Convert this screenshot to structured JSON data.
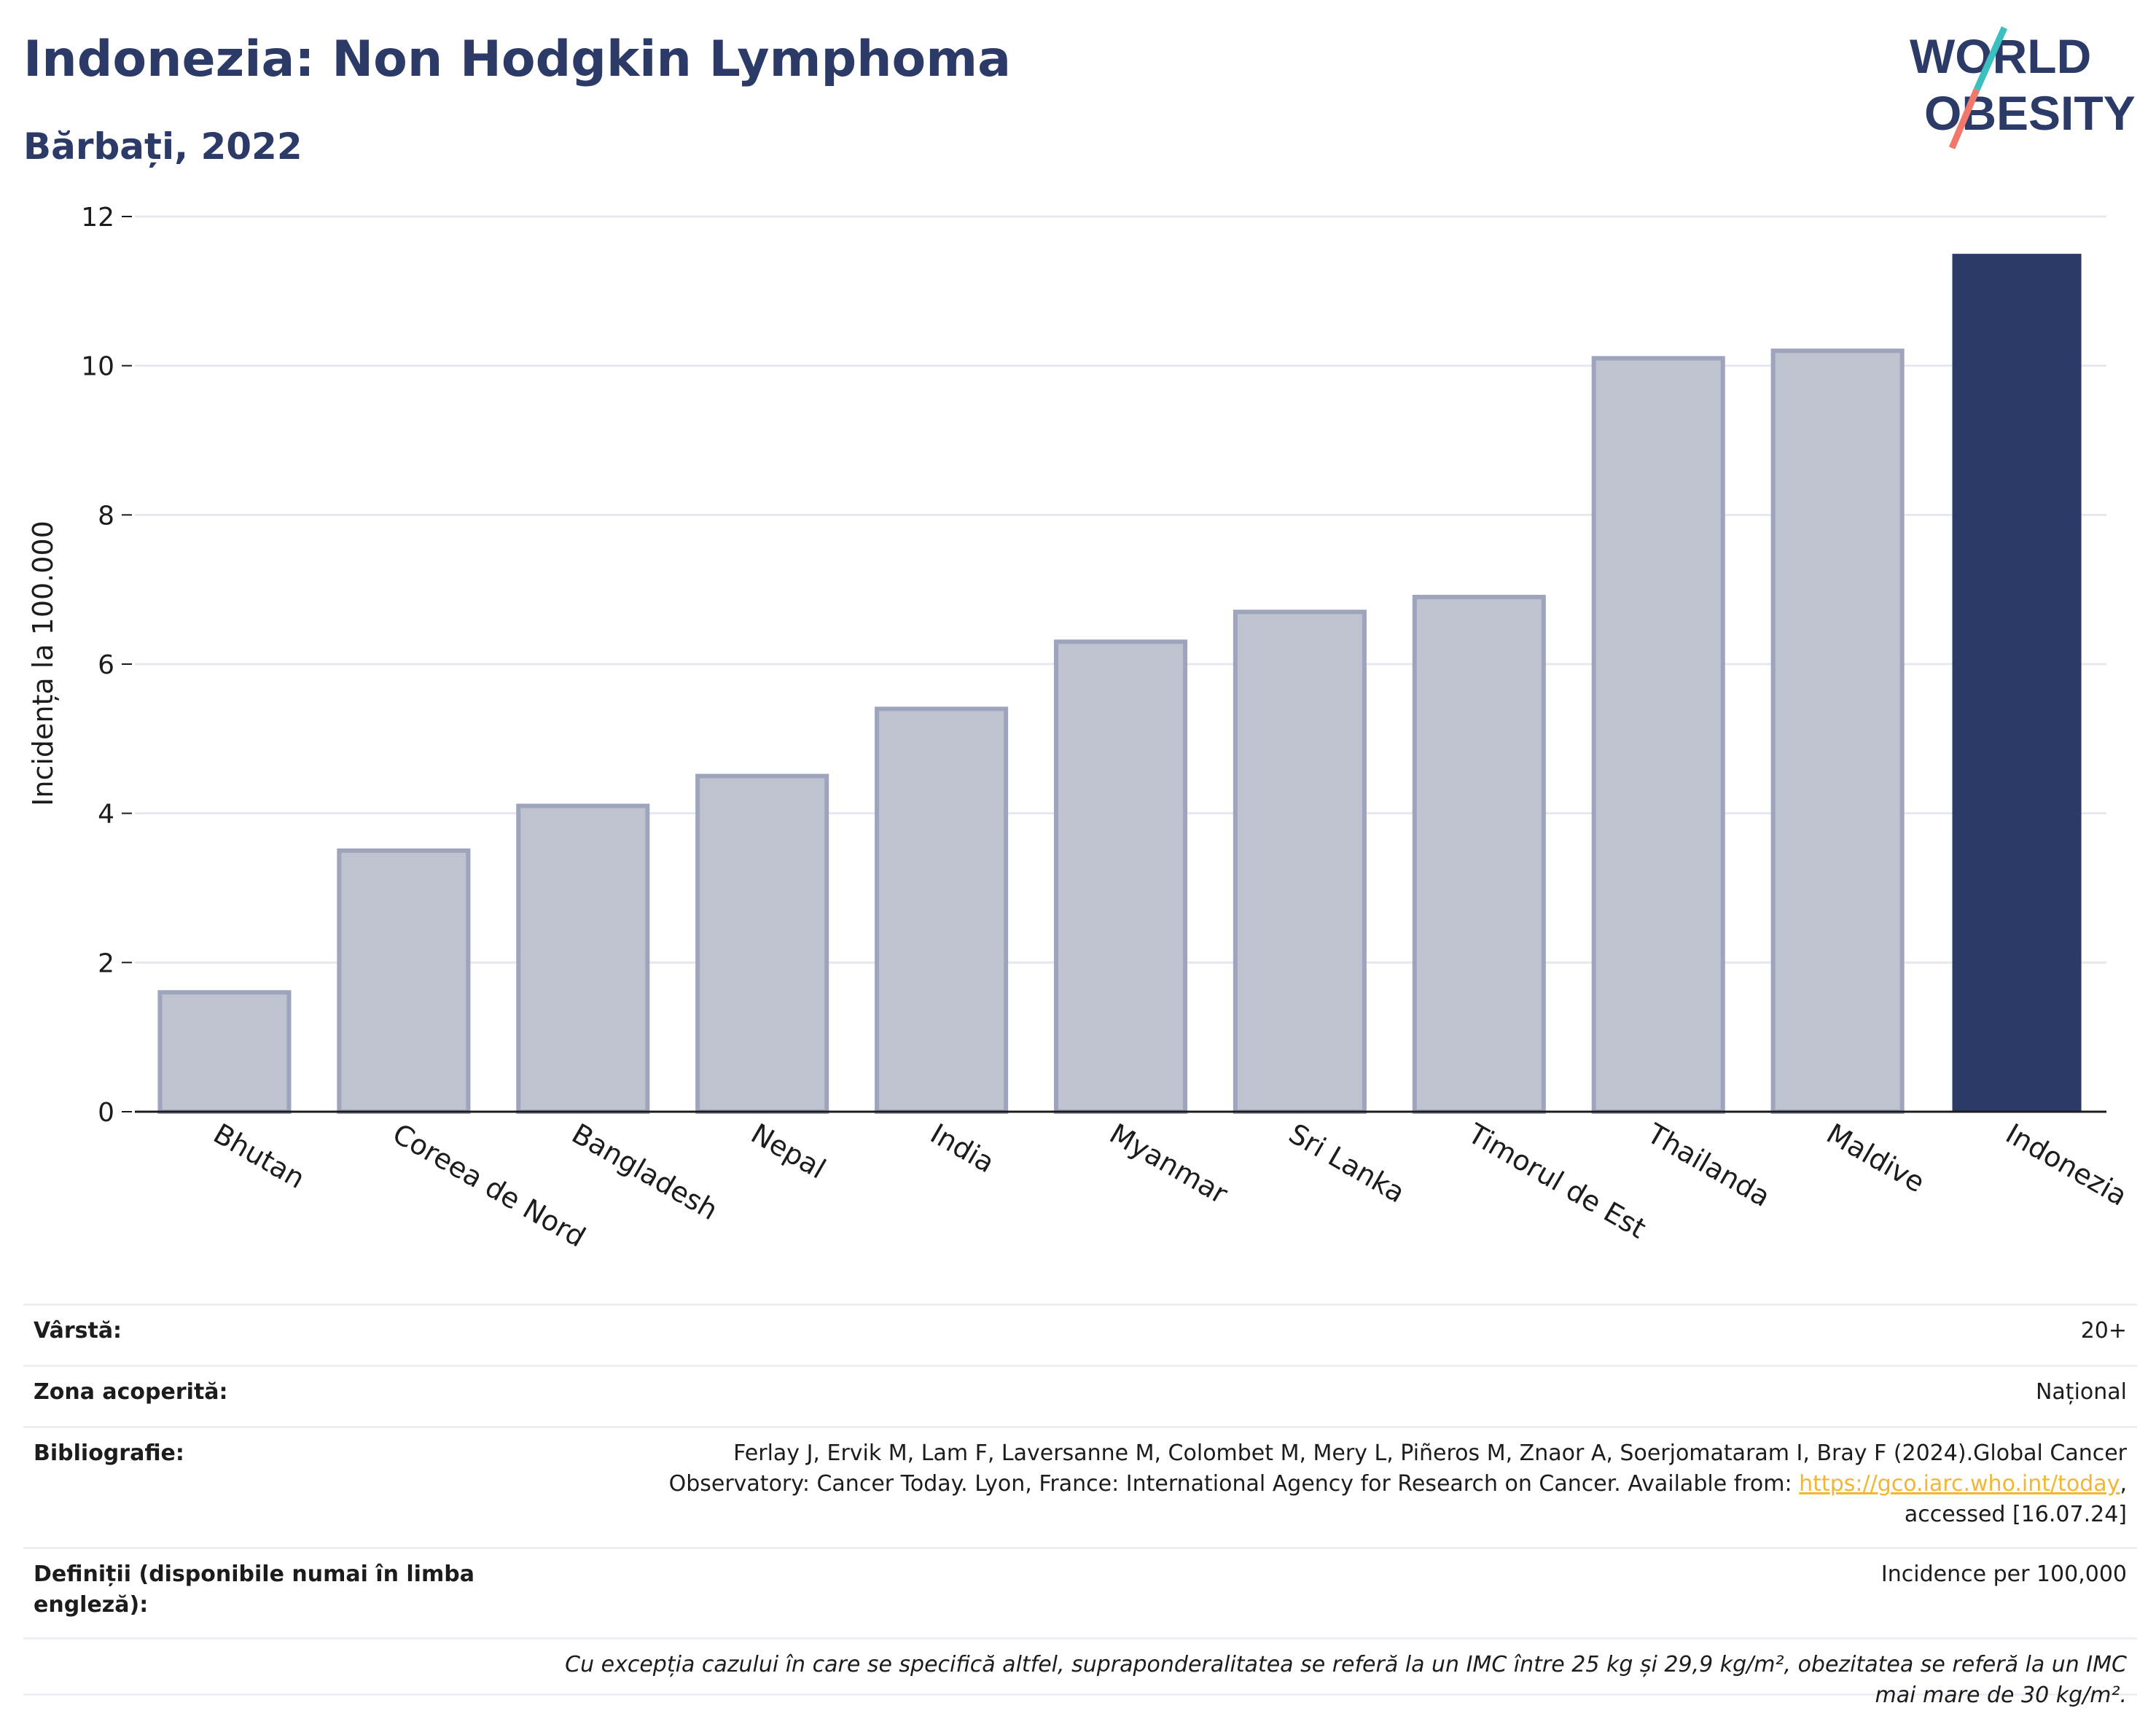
{
  "header": {
    "title": "Indonezia: Non Hodgkin Lymphoma",
    "subtitle": "Bărbați, 2022"
  },
  "logo": {
    "line1": "WORLD",
    "line2": "OBESITY"
  },
  "colors": {
    "highlight": "#2b3a67",
    "others_fill": "#bfc3d0",
    "others_stroke": "#9ea4bb",
    "accent_teal": "#3bbfbf",
    "accent_coral": "#f0776a"
  },
  "chart_data": {
    "type": "bar",
    "categories": [
      "Bhutan",
      "Coreea de Nord",
      "Bangladesh",
      "Nepal",
      "India",
      "Myanmar",
      "Sri Lanka",
      "Timorul de Est",
      "Thailanda",
      "Maldive",
      "Indonezia"
    ],
    "values": [
      1.6,
      3.5,
      4.1,
      4.5,
      5.4,
      6.3,
      6.7,
      6.9,
      10.1,
      10.2,
      11.5
    ],
    "highlight": "Indonezia",
    "ylabel": "Incidența la 100.000",
    "ylim": [
      0,
      12
    ],
    "yticks": [
      0,
      2,
      4,
      6,
      8,
      10,
      12
    ],
    "grid": true
  },
  "info": {
    "age_label": "Vârstă:",
    "age_value": "20+",
    "area_label": "Zona acoperită:",
    "area_value": "Național",
    "bib_label": "Bibliografie:",
    "bib_text_1": "Ferlay J, Ervik M, Lam F, Laversanne M, Colombet M, Mery L, Piñeros M, Znaor A, Soerjomataram I, Bray F (2024).Global Cancer",
    "bib_text_2": "Observatory: Cancer Today. Lyon, France: International Agency for Research on Cancer. Available from: ",
    "bib_link": "https://gco.iarc.who.int/today",
    "bib_text_3": ",",
    "bib_text_4": "accessed [16.07.24]",
    "def_label": "Definiții (disponibile numai în limba engleză):",
    "def_value": "Incidence per 100,000",
    "note": "Cu excepția cazului în care se specifică altfel, supraponderalitatea se referă la un IMC între 25 kg și 29,9 kg/m², obezitatea se referă la un IMC mai mare de 30 kg/m²."
  }
}
